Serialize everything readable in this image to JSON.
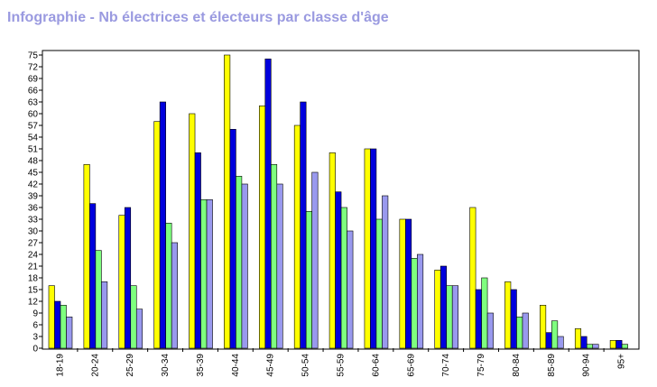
{
  "chart_data": {
    "type": "bar",
    "title": "Infographie - Nb électrices et électeurs par classe d'âge",
    "categories": [
      "18-19",
      "20-24",
      "25-29",
      "30-34",
      "35-39",
      "40-44",
      "45-49",
      "50-54",
      "55-59",
      "60-64",
      "65-69",
      "70-74",
      "75-79",
      "80-84",
      "85-89",
      "90-94",
      "95+"
    ],
    "series": [
      {
        "color": "#ffff00",
        "values": [
          16,
          47,
          34,
          58,
          60,
          75,
          62,
          57,
          50,
          51,
          33,
          20,
          36,
          17,
          11,
          5,
          2
        ]
      },
      {
        "color": "#0000dd",
        "values": [
          12,
          37,
          36,
          63,
          50,
          56,
          74,
          63,
          40,
          51,
          33,
          21,
          15,
          15,
          4,
          3,
          2
        ]
      },
      {
        "color": "#7fff7f",
        "values": [
          11,
          25,
          16,
          32,
          38,
          44,
          47,
          35,
          36,
          33,
          23,
          16,
          18,
          8,
          7,
          1,
          1
        ]
      },
      {
        "color": "#9999ee",
        "values": [
          8,
          17,
          10,
          27,
          38,
          42,
          42,
          45,
          30,
          39,
          24,
          16,
          9,
          9,
          3,
          1,
          0
        ]
      }
    ],
    "ylim": [
      0,
      76
    ],
    "yticks": [
      0,
      3,
      6,
      9,
      12,
      15,
      18,
      21,
      24,
      27,
      30,
      33,
      36,
      39,
      42,
      45,
      48,
      51,
      54,
      57,
      60,
      63,
      66,
      69,
      72,
      75
    ],
    "xlabel": "",
    "ylabel": "",
    "grid": false,
    "legend": "none"
  }
}
